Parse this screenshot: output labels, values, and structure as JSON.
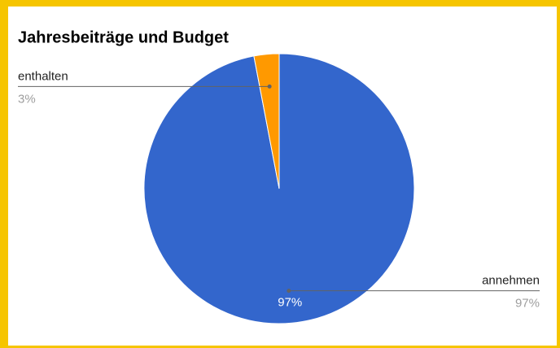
{
  "chart_data": {
    "type": "pie",
    "title": "Jahresbeiträge und Budget",
    "categories": [
      "annehmen",
      "enthalten"
    ],
    "values": [
      97,
      3
    ],
    "value_labels": [
      "97%",
      "3%"
    ],
    "colors": [
      "#3366cc",
      "#ff9900"
    ]
  }
}
